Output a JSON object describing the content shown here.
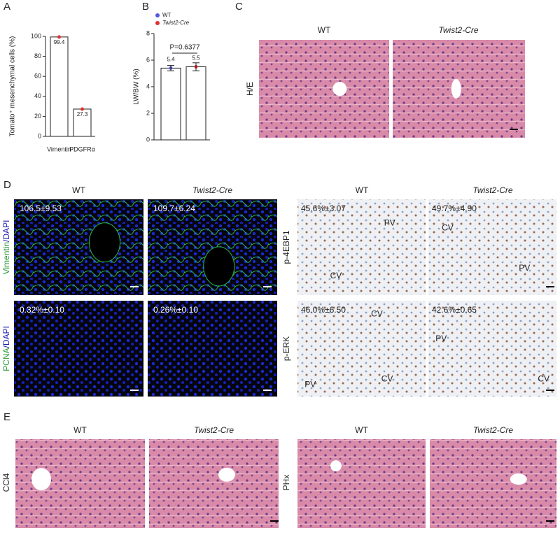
{
  "chart_data": [
    {
      "type": "bar",
      "categories": [
        "Vimentin",
        "PDGFRα"
      ],
      "values": [
        99.4,
        27.3
      ],
      "color": "#ffffff",
      "point_color": "#e03030",
      "y_label": "Tomato⁺ mesenchymal cells (%)",
      "ylim": [
        0,
        100
      ],
      "yticks": [
        0,
        20,
        40,
        60,
        80,
        100
      ]
    },
    {
      "type": "bar",
      "categories": [
        "WT",
        "Twist2-Cre"
      ],
      "series": [
        {
          "name": "WT",
          "color": "#5555dd",
          "values": [
            5.4,
            null
          ]
        },
        {
          "name": "Twist2-Cre",
          "color": "#e03030",
          "values": [
            null,
            5.5
          ]
        }
      ],
      "errors": [
        0.2,
        0.3
      ],
      "y_label": "LW/BW (%)",
      "annotation": "P=0.6377",
      "ylim": [
        0,
        8
      ],
      "yticks": [
        0,
        2,
        4,
        6,
        8
      ]
    }
  ],
  "figure": {
    "letters": [
      "A",
      "B",
      "C",
      "D",
      "E"
    ],
    "C": {
      "columns": [
        "WT",
        "Twist2-Cre"
      ],
      "row_label": "H/E"
    },
    "D": {
      "fluorescence": {
        "columns": [
          "WT",
          "Twist2-Cre"
        ],
        "rows": [
          {
            "label": [
              "Vimentin",
              "/DAPI"
            ],
            "quant": [
              "106.5±9.53",
              "109.7±6.24"
            ]
          },
          {
            "label": [
              "PCNA",
              "/DAPI"
            ],
            "quant": [
              "0.32%±0.10",
              "0.26%±0.10"
            ]
          }
        ]
      },
      "ihc": {
        "columns": [
          "WT",
          "Twist2-Cre"
        ],
        "rows": [
          {
            "label": "p-4EBP1",
            "quant": [
              "45.6%±3.07",
              "49.7%±4.90"
            ],
            "marks": [
              [
                "PV",
                "CV"
              ],
              [
                "CV",
                "PV"
              ]
            ]
          },
          {
            "label": "p-ERK",
            "quant": [
              "46.0%±6.50",
              "42.6%±0.65"
            ],
            "marks": [
              [
                "CV",
                "PV",
                "CV"
              ],
              [
                "PV",
                "CV"
              ]
            ]
          }
        ]
      }
    },
    "E": {
      "columns": [
        "WT",
        "Twist2-Cre",
        "WT",
        "Twist2-Cre"
      ],
      "row_labels": [
        "CCl4",
        "PHx"
      ]
    }
  }
}
